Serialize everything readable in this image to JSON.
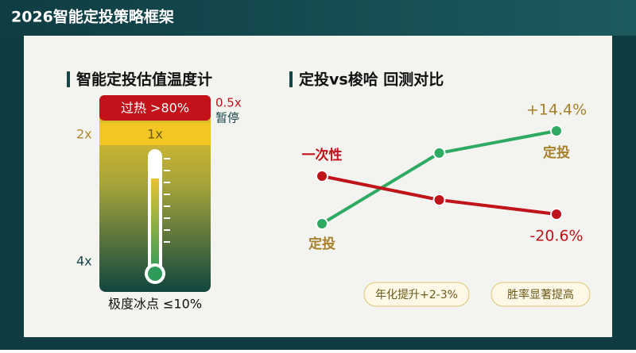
{
  "header": {
    "title": "2026智能定投策略框架"
  },
  "thermometer": {
    "title": "智能定投估值温度计",
    "top_zone": "过热 >80%",
    "top_multiplier": "0.5x",
    "top_action": "暂停",
    "mid_left": "2x",
    "mid_zone": "1x",
    "bottom_left": "4x",
    "bottom_zone": "极度冰点 ≤10%"
  },
  "chart_data": {
    "type": "line",
    "title": "定投vs梭哈 回测对比",
    "categories": [
      null,
      null,
      null
    ],
    "series": [
      {
        "name": "定投",
        "color": "#2eaa62",
        "values": [
          -24.6,
          5.1,
          14.4
        ],
        "value_labels": [
          null,
          null,
          "+14.4%"
        ]
      },
      {
        "name": "一次性",
        "color": "#c0131a",
        "values": [
          -4.6,
          -14.6,
          -20.6
        ],
        "value_labels": [
          null,
          null,
          "-20.6%"
        ]
      }
    ]
  },
  "badges": [
    "年化提升+2-3%",
    "胜率显著提高"
  ]
}
